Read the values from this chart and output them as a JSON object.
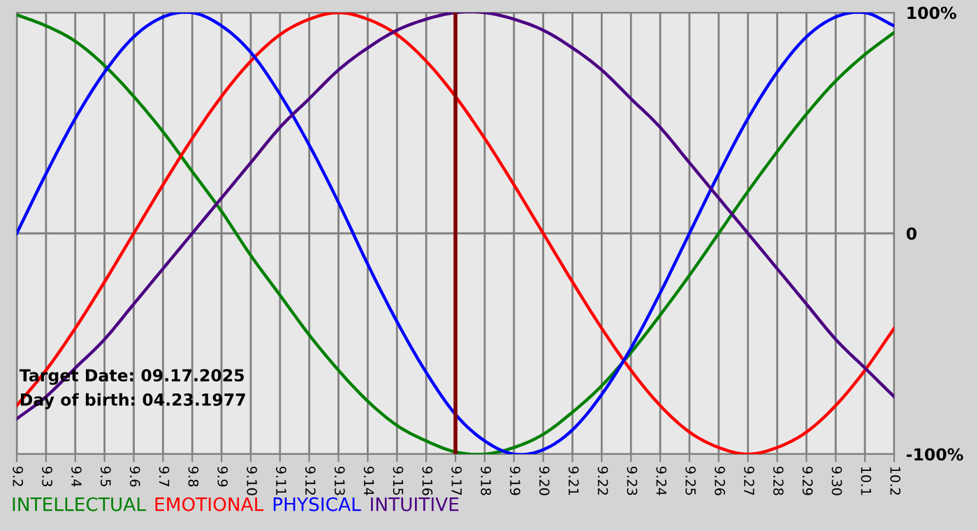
{
  "chart_data": {
    "type": "line",
    "categories": [
      "9.2",
      "9.3",
      "9.4",
      "9.5",
      "9.6",
      "9.7",
      "9.8",
      "9.9",
      "9.10",
      "9.11",
      "9.12",
      "9.13",
      "9.14",
      "9.15",
      "9.16",
      "9.17",
      "9.18",
      "9.19",
      "9.20",
      "9.21",
      "9.22",
      "9.23",
      "9.24",
      "9.25",
      "9.26",
      "9.27",
      "9.28",
      "9.29",
      "9.30",
      "10.1",
      "10.2"
    ],
    "series": [
      {
        "name": "INTELLECTUAL",
        "color": "#008000",
        "values": [
          99,
          94,
          87,
          76,
          62,
          46,
          28,
          10,
          -10,
          -28,
          -46,
          -62,
          -76,
          -87,
          -94,
          -99,
          -100,
          -97,
          -91,
          -81,
          -69,
          -54,
          -37,
          -19,
          0,
          19,
          37,
          54,
          69,
          81,
          91
        ]
      },
      {
        "name": "EMOTIONAL",
        "color": "#ff0000",
        "values": [
          -78,
          -62,
          -43,
          -22,
          0,
          22,
          43,
          62,
          78,
          90,
          97,
          100,
          97,
          90,
          78,
          62,
          43,
          22,
          0,
          -22,
          -43,
          -62,
          -78,
          -90,
          -97,
          -100,
          -97,
          -90,
          -78,
          -62,
          -43
        ]
      },
      {
        "name": "PHYSICAL",
        "color": "#0000ff",
        "values": [
          0,
          27,
          52,
          73,
          89,
          98,
          100,
          94,
          82,
          63,
          40,
          14,
          -14,
          -40,
          -63,
          -82,
          -94,
          -100,
          -98,
          -89,
          -73,
          -52,
          -27,
          0,
          27,
          52,
          73,
          89,
          98,
          100,
          94
        ]
      },
      {
        "name": "INTUITIVE",
        "color": "#4b0082",
        "values": [
          -84,
          -74,
          -61,
          -48,
          -32,
          -16,
          0,
          16,
          32,
          48,
          61,
          74,
          84,
          92,
          97,
          100,
          100,
          97,
          92,
          84,
          74,
          61,
          48,
          32,
          16,
          0,
          -16,
          -32,
          -48,
          -61,
          -74
        ]
      }
    ],
    "ylim": [
      -100,
      100
    ],
    "yticks": [
      {
        "value": 100,
        "label": "100%"
      },
      0,
      {
        "value": -100,
        "label": "-100%"
      }
    ],
    "ref_lines": [
      {
        "axis": "x",
        "value": "9.17",
        "color": "#800000"
      }
    ],
    "annotations": [
      "Target Date: 09.17.2025",
      "Day of birth: 04.23.1977"
    ],
    "grid": true,
    "legend": "bottom",
    "marker": "none",
    "line_style": "solid"
  }
}
